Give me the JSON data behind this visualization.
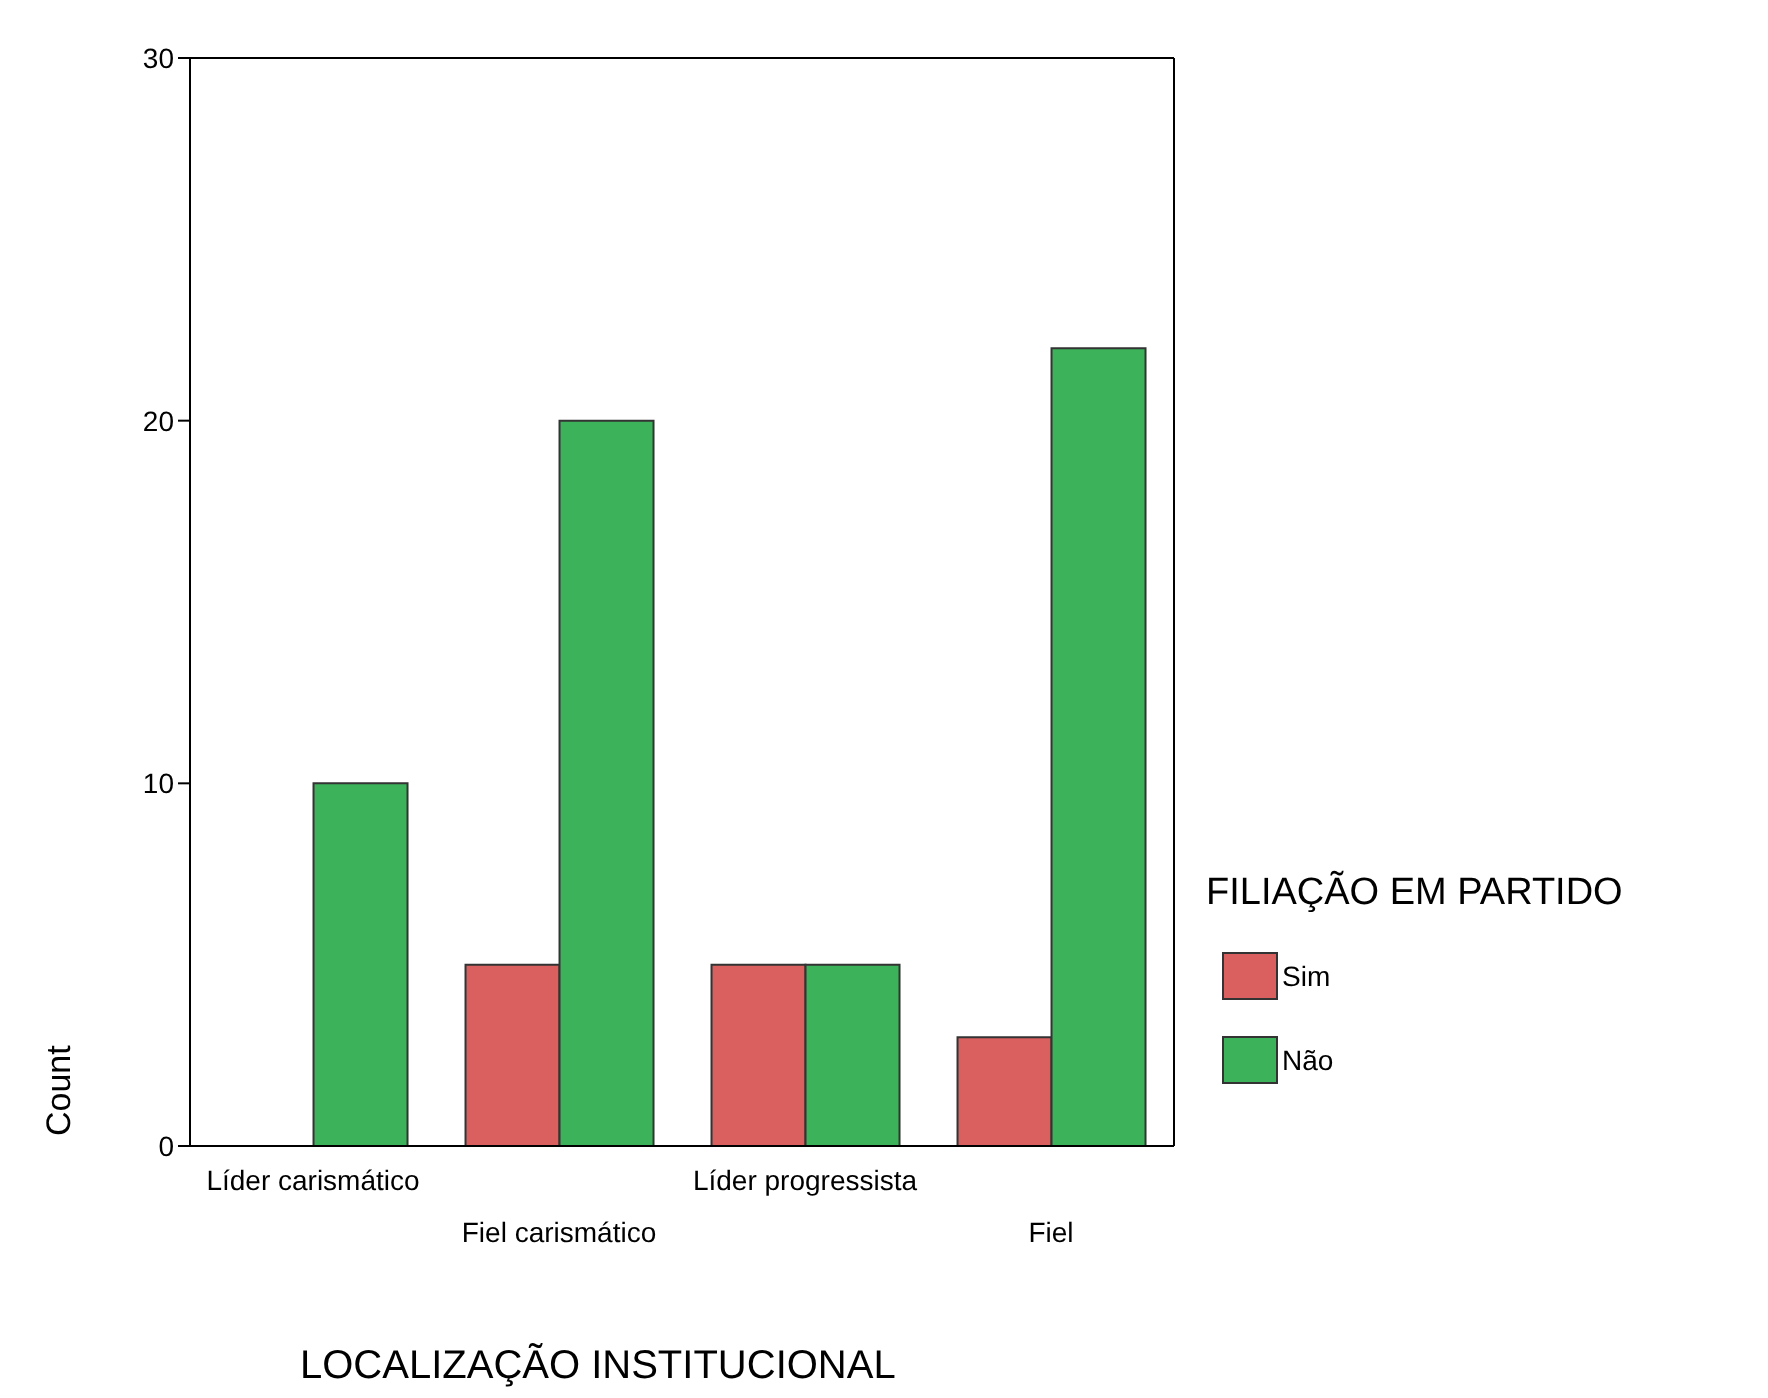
{
  "chart_data": {
    "type": "bar",
    "xlabel": "LOCALIZAÇÃO INSTITUCIONAL",
    "ylabel": "Count",
    "legend_title": "FILIAÇÃO EM PARTIDO",
    "categories": [
      "Líder carismático",
      "Fiel carismático",
      "Líder progressista",
      "Fiel"
    ],
    "series": [
      {
        "name": "Sim",
        "color": "#d9605f",
        "values": [
          0,
          5,
          5,
          3
        ]
      },
      {
        "name": "Não",
        "color": "#3cb35a",
        "values": [
          10,
          20,
          5,
          22
        ]
      }
    ],
    "ylim": [
      0,
      30
    ],
    "yticks": [
      0,
      10,
      20,
      30
    ],
    "grid": false,
    "legend": "right"
  }
}
